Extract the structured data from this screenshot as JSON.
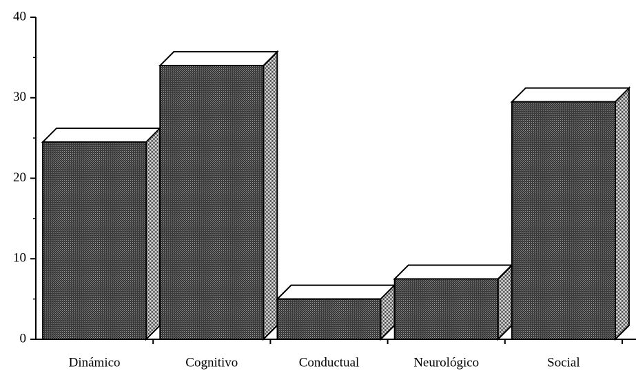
{
  "chart_data": {
    "type": "bar3d",
    "categories": [
      "Dinámico",
      "Cognitivo",
      "Conductual",
      "Neurológico",
      "Social"
    ],
    "values": [
      24.5,
      34,
      5,
      7.5,
      29.5
    ],
    "ylim": [
      0,
      40
    ],
    "yticks": [
      0,
      10,
      20,
      30,
      40
    ]
  }
}
